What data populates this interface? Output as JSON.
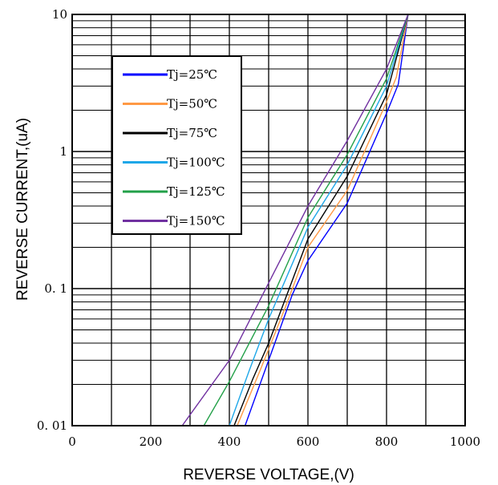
{
  "chart_data": {
    "type": "line",
    "xlabel": "REVERSE VOLTAGE,(V)",
    "ylabel": "REVERSE CURRENT,(uA)",
    "xlim": [
      0,
      1000
    ],
    "ylim": [
      0.01,
      10
    ],
    "y_scale": "log",
    "grid": true,
    "legend_position": "top-left",
    "x_ticks": [
      {
        "value": 0,
        "label": "0"
      },
      {
        "value": 200,
        "label": "200"
      },
      {
        "value": 400,
        "label": "400"
      },
      {
        "value": 600,
        "label": "600"
      },
      {
        "value": 800,
        "label": "800"
      },
      {
        "value": 1000,
        "label": "1000"
      }
    ],
    "y_ticks": [
      {
        "value": 0.01,
        "label": "0. 01"
      },
      {
        "value": 0.1,
        "label": "0. 1"
      },
      {
        "value": 1,
        "label": "1"
      },
      {
        "value": 10,
        "label": "10"
      }
    ],
    "series": [
      {
        "name": "Tj=25℃",
        "color": "#0000ff",
        "points": [
          [
            440,
            0.01
          ],
          [
            500,
            0.03
          ],
          [
            560,
            0.09
          ],
          [
            600,
            0.16
          ],
          [
            700,
            0.42
          ],
          [
            800,
            1.9
          ],
          [
            830,
            3.1
          ],
          [
            855,
            10
          ]
        ]
      },
      {
        "name": "Tj=50℃",
        "color": "#ff9944",
        "points": [
          [
            420,
            0.01
          ],
          [
            480,
            0.026
          ],
          [
            540,
            0.07
          ],
          [
            600,
            0.2
          ],
          [
            700,
            0.52
          ],
          [
            800,
            2.3
          ],
          [
            825,
            3.5
          ],
          [
            855,
            10
          ]
        ]
      },
      {
        "name": "Tj=75℃",
        "color": "#000000",
        "points": [
          [
            412,
            0.01
          ],
          [
            460,
            0.022
          ],
          [
            500,
            0.04
          ],
          [
            600,
            0.23
          ],
          [
            700,
            0.66
          ],
          [
            800,
            2.6
          ],
          [
            855,
            10
          ]
        ]
      },
      {
        "name": "Tj=100℃",
        "color": "#1ea7e8",
        "points": [
          [
            400,
            0.01
          ],
          [
            450,
            0.025
          ],
          [
            500,
            0.06
          ],
          [
            600,
            0.28
          ],
          [
            700,
            0.8
          ],
          [
            800,
            3.0
          ],
          [
            855,
            10
          ]
        ]
      },
      {
        "name": "Tj=125℃",
        "color": "#22a048",
        "points": [
          [
            335,
            0.01
          ],
          [
            400,
            0.021
          ],
          [
            500,
            0.075
          ],
          [
            600,
            0.33
          ],
          [
            700,
            0.95
          ],
          [
            800,
            3.4
          ],
          [
            855,
            10
          ]
        ]
      },
      {
        "name": "Tj=150℃",
        "color": "#7030a0",
        "points": [
          [
            280,
            0.01
          ],
          [
            400,
            0.03
          ],
          [
            500,
            0.11
          ],
          [
            600,
            0.4
          ],
          [
            700,
            1.2
          ],
          [
            800,
            4.0
          ],
          [
            855,
            10
          ]
        ]
      }
    ]
  }
}
